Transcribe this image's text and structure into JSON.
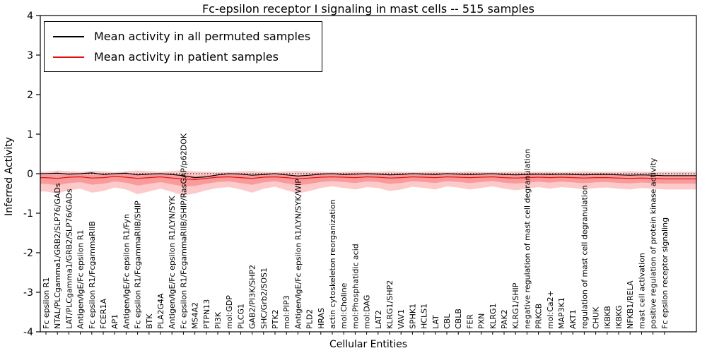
{
  "title": "Fc-epsilon receptor I signaling in mast cells -- 515 samples",
  "xlabel": "Cellular Entities",
  "ylabel": "Inferred Activity",
  "legend": {
    "permuted": "Mean activity in all permuted samples",
    "patient": "Mean activity in patient samples"
  },
  "colors": {
    "permuted_line": "#000000",
    "patient_line": "#e01010",
    "band_fill": "#f55050",
    "zero_line": "#000000",
    "frame": "#000000"
  },
  "chart_data": {
    "type": "line",
    "title": "Fc-epsilon receptor I signaling in mast cells -- 515 samples",
    "xlabel": "Cellular Entities",
    "ylabel": "Inferred Activity",
    "ylim": [
      -4,
      4
    ],
    "y_ticks": [
      -4,
      -3,
      -2,
      -1,
      0,
      1,
      2,
      3,
      4
    ],
    "grid": false,
    "legend_position": "upper left",
    "zero_reference_line": 0,
    "categories": [
      "Fc epsilon R1",
      "NTAL/PLCgamma1/GRB2/SLP76/GADs",
      "LAT/PLCgamma1/GRB2/SLP76/GADs",
      "Antigen/IgE/Fc epsilon R1",
      "Fc epsilon R1/FcgammaRIIB",
      "FCER1A",
      "AP1",
      "Antigen/IgE/Fc epsilon R1/Fyn",
      "Fc epsilon R1/FcgammaRIIB/SHIP",
      "BTK",
      "PLA2G4A",
      "Antigen/IgE/Fc epsilon R1/LYN/SYK",
      "Fc epsilon R1/FcgammaRIIB/SHIP/RasGAP/p62DOK",
      "MS4A2",
      "PTPN13",
      "PI3K",
      "mol:GDP",
      "PLCG1",
      "GAB2/PI3K/SHP2",
      "SHC/Grb2/SOS1",
      "PTK2",
      "mol:PIP3",
      "Antigen/IgE/Fc epsilon R1/LYN/SYK/WIP",
      "PLD2",
      "HRAS",
      "actin cytoskeleton reorganization",
      "mol:Choline",
      "mol:Phosphatidic acid",
      "mol:DAG",
      "LAT2",
      "KLRG1/SHP2",
      "VAV1",
      "SPHK1",
      "HCLS1",
      "LAT",
      "CBL",
      "CBLB",
      "FER",
      "PXN",
      "KLRG1",
      "PAK2",
      "KLRG1/SHIP",
      "negative regulation of mast cell degranulation",
      "PRKCB",
      "mol:Ca2+",
      "MAP3K1",
      "AKT1",
      "regulation of mast cell degranulation",
      "CHUK",
      "IKBKB",
      "IKBKG",
      "NFKB1/RELA",
      "mast cell activation",
      "positive regulation of protein kinase activity",
      "Fc epsilon receptor signaling"
    ],
    "series": [
      {
        "name": "Mean activity in all permuted samples",
        "color": "#000000",
        "values": [
          0.0,
          0.01,
          -0.01,
          0.0,
          0.02,
          -0.02,
          0.0,
          0.01,
          -0.03,
          -0.01,
          0.0,
          -0.02,
          -0.05,
          -0.1,
          -0.08,
          -0.03,
          0.0,
          -0.01,
          -0.04,
          -0.02,
          0.0,
          -0.03,
          -0.06,
          -0.04,
          -0.01,
          0.0,
          -0.02,
          -0.01,
          0.0,
          -0.01,
          -0.03,
          -0.02,
          0.0,
          -0.01,
          -0.02,
          0.0,
          -0.01,
          -0.02,
          -0.01,
          0.0,
          -0.02,
          -0.03,
          -0.02,
          -0.01,
          -0.02,
          -0.01,
          -0.02,
          -0.03,
          -0.02,
          -0.02,
          -0.03,
          -0.04,
          -0.03,
          -0.04,
          -0.05
        ]
      },
      {
        "name": "Mean activity in patient samples",
        "color": "#e01010",
        "values": [
          -0.1,
          -0.12,
          -0.09,
          -0.08,
          -0.11,
          -0.1,
          -0.07,
          -0.09,
          -0.12,
          -0.1,
          -0.08,
          -0.11,
          -0.13,
          -0.15,
          -0.12,
          -0.09,
          -0.08,
          -0.1,
          -0.12,
          -0.09,
          -0.08,
          -0.1,
          -0.13,
          -0.11,
          -0.09,
          -0.08,
          -0.09,
          -0.1,
          -0.08,
          -0.09,
          -0.11,
          -0.1,
          -0.08,
          -0.09,
          -0.1,
          -0.08,
          -0.09,
          -0.1,
          -0.09,
          -0.08,
          -0.1,
          -0.11,
          -0.1,
          -0.09,
          -0.1,
          -0.09,
          -0.1,
          -0.11,
          -0.1,
          -0.1,
          -0.11,
          -0.12,
          -0.11,
          -0.12,
          -0.13
        ]
      }
    ],
    "band": {
      "upper": [
        0.05,
        0.08,
        0.06,
        0.05,
        0.07,
        0.06,
        0.04,
        0.06,
        0.08,
        0.06,
        0.05,
        0.07,
        0.08,
        0.06,
        0.05,
        0.04,
        0.05,
        0.06,
        0.07,
        0.05,
        0.04,
        0.06,
        0.07,
        0.06,
        0.05,
        0.04,
        0.05,
        0.06,
        0.05,
        0.05,
        0.06,
        0.05,
        0.04,
        0.05,
        0.06,
        0.04,
        0.05,
        0.06,
        0.05,
        0.04,
        0.05,
        0.06,
        0.05,
        0.05,
        0.05,
        0.04,
        0.05,
        0.06,
        0.05,
        0.05,
        0.05,
        0.06,
        0.05,
        0.05,
        0.05
      ],
      "lower": [
        -0.45,
        -0.5,
        -0.42,
        -0.38,
        -0.48,
        -0.44,
        -0.35,
        -0.4,
        -0.52,
        -0.45,
        -0.38,
        -0.46,
        -0.55,
        -0.5,
        -0.42,
        -0.36,
        -0.34,
        -0.4,
        -0.48,
        -0.38,
        -0.33,
        -0.42,
        -0.5,
        -0.44,
        -0.36,
        -0.32,
        -0.36,
        -0.4,
        -0.34,
        -0.36,
        -0.44,
        -0.4,
        -0.33,
        -0.36,
        -0.4,
        -0.32,
        -0.35,
        -0.4,
        -0.36,
        -0.32,
        -0.38,
        -0.42,
        -0.38,
        -0.34,
        -0.38,
        -0.34,
        -0.36,
        -0.4,
        -0.36,
        -0.35,
        -0.38,
        -0.4,
        -0.36,
        -0.38,
        -0.4
      ]
    }
  }
}
